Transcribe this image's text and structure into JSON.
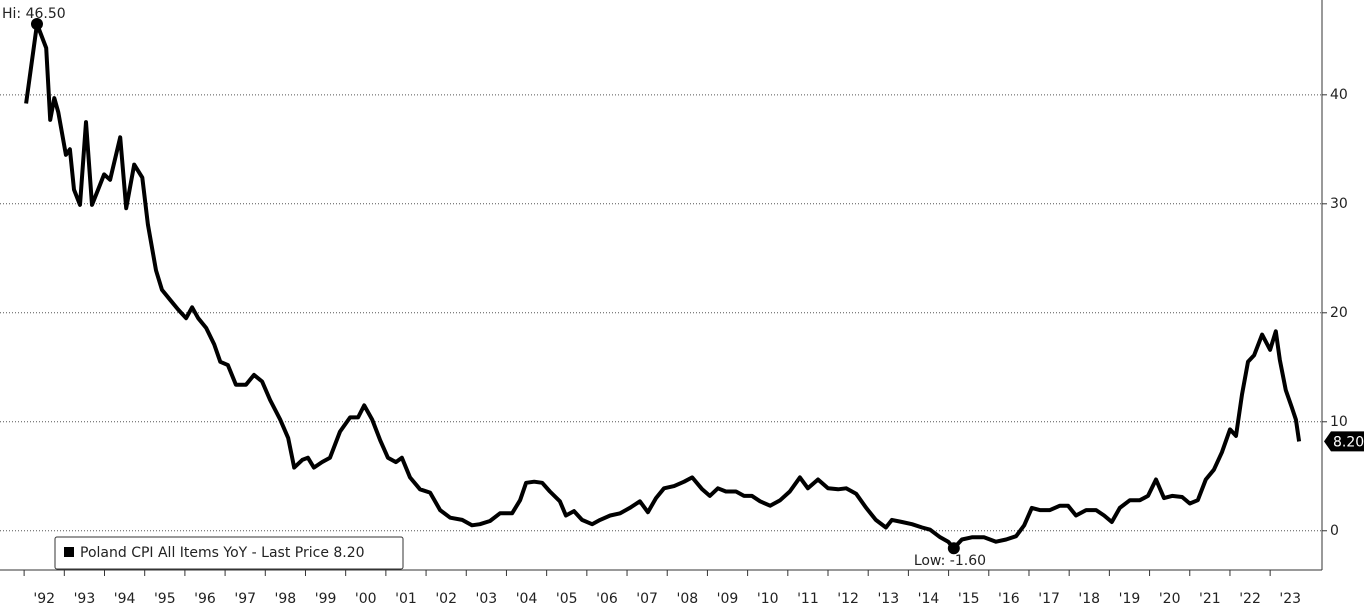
{
  "chart_data": {
    "type": "line",
    "hi_label": "Hi: 46.50",
    "low_label": "Low: -1.60",
    "last_label": "8.20",
    "x": [
      1992.05,
      1992.32,
      1992.55,
      1992.65,
      1992.75,
      1992.85,
      1993.04,
      1993.14,
      1993.24,
      1993.39,
      1993.54,
      1993.69,
      1993.84,
      1993.99,
      1994.14,
      1994.39,
      1994.54,
      1994.74,
      1994.94,
      1995.08,
      1995.28,
      1995.43,
      1995.63,
      1995.83,
      1996.03,
      1996.18,
      1996.33,
      1996.53,
      1996.73,
      1996.88,
      1997.07,
      1997.27,
      1997.52,
      1997.72,
      1997.92,
      1998.12,
      1998.37,
      1998.57,
      1998.72,
      1998.92,
      1999.06,
      1999.21,
      1999.41,
      1999.61,
      1999.86,
      2000.11,
      2000.31,
      2000.46,
      2000.66,
      2000.86,
      2001.05,
      2001.25,
      2001.4,
      2001.6,
      2001.85,
      2002.1,
      2002.35,
      2002.6,
      2002.9,
      2003.14,
      2003.34,
      2003.59,
      2003.84,
      2004.14,
      2004.34,
      2004.49,
      2004.69,
      2004.89,
      2005.08,
      2005.33,
      2005.48,
      2005.68,
      2005.88,
      2006.13,
      2006.33,
      2006.58,
      2006.83,
      2007.07,
      2007.32,
      2007.52,
      2007.72,
      2007.92,
      2008.17,
      2008.42,
      2008.62,
      2008.87,
      2009.06,
      2009.26,
      2009.46,
      2009.71,
      2009.91,
      2010.11,
      2010.31,
      2010.56,
      2010.81,
      2011.05,
      2011.3,
      2011.5,
      2011.75,
      2012.0,
      2012.25,
      2012.45,
      2012.7,
      2012.95,
      2013.19,
      2013.44,
      2013.59,
      2013.84,
      2014.09,
      2014.34,
      2014.54,
      2014.79,
      2014.99,
      2015.13,
      2015.33,
      2015.58,
      2015.88,
      2016.18,
      2016.43,
      2016.68,
      2016.88,
      2017.07,
      2017.27,
      2017.52,
      2017.77,
      2017.97,
      2018.17,
      2018.42,
      2018.67,
      2018.87,
      2019.06,
      2019.26,
      2019.51,
      2019.76,
      2019.96,
      2020.16,
      2020.36,
      2020.56,
      2020.81,
      2021.0,
      2021.2,
      2021.4,
      2021.6,
      2021.8,
      2022.0,
      2022.15,
      2022.3,
      2022.45,
      2022.6,
      2022.8,
      2023.0,
      2023.14,
      2023.24,
      2023.39,
      2023.54,
      2023.64,
      2023.72
    ],
    "series": [
      {
        "name": "Poland CPI All Items YoY - Last Price 8.20",
        "color": "#000000",
        "values": [
          39.2,
          46.5,
          44.3,
          37.7,
          39.7,
          38.4,
          34.5,
          35.0,
          31.3,
          29.9,
          37.5,
          29.9,
          31.3,
          32.7,
          32.2,
          36.1,
          29.6,
          33.6,
          32.4,
          28.1,
          23.9,
          22.1,
          21.2,
          20.3,
          19.5,
          20.5,
          19.5,
          18.6,
          17.1,
          15.5,
          15.2,
          13.4,
          13.4,
          14.3,
          13.7,
          12.0,
          10.2,
          8.5,
          5.8,
          6.5,
          6.7,
          5.8,
          6.3,
          6.7,
          9.1,
          10.4,
          10.4,
          11.5,
          10.2,
          8.3,
          6.7,
          6.3,
          6.7,
          4.9,
          3.8,
          3.5,
          1.9,
          1.2,
          1.0,
          0.5,
          0.6,
          0.9,
          1.6,
          1.6,
          2.8,
          4.4,
          4.5,
          4.4,
          3.6,
          2.7,
          1.4,
          1.8,
          1.0,
          0.6,
          1.0,
          1.4,
          1.6,
          2.1,
          2.7,
          1.7,
          3.0,
          3.9,
          4.1,
          4.5,
          4.9,
          3.8,
          3.2,
          3.9,
          3.6,
          3.6,
          3.2,
          3.2,
          2.7,
          2.3,
          2.8,
          3.6,
          4.9,
          3.9,
          4.7,
          3.9,
          3.8,
          3.9,
          3.4,
          2.1,
          1.0,
          0.3,
          1.0,
          0.8,
          0.6,
          0.3,
          0.1,
          -0.6,
          -1.0,
          -1.6,
          -0.8,
          -0.6,
          -0.6,
          -1.0,
          -0.8,
          -0.5,
          0.5,
          2.1,
          1.9,
          1.9,
          2.3,
          2.3,
          1.4,
          1.9,
          1.9,
          1.4,
          0.8,
          2.1,
          2.8,
          2.8,
          3.2,
          4.7,
          3.0,
          3.2,
          3.1,
          2.5,
          2.8,
          4.7,
          5.6,
          7.2,
          9.3,
          8.7,
          12.5,
          15.5,
          16.1,
          18.0,
          16.6,
          18.3,
          15.7,
          12.9,
          11.3,
          10.2,
          8.2
        ]
      }
    ],
    "xlim": [
      1991.4,
      2024.29
    ],
    "ylim": [
      -3.6,
      48.7
    ],
    "yticks": [
      0,
      10,
      20,
      30,
      40
    ],
    "xticks": [
      {
        "value": 1992,
        "label": "'92"
      },
      {
        "value": 1993,
        "label": "'93"
      },
      {
        "value": 1994,
        "label": "'94"
      },
      {
        "value": 1995,
        "label": "'95"
      },
      {
        "value": 1996,
        "label": "'96"
      },
      {
        "value": 1997,
        "label": "'97"
      },
      {
        "value": 1998,
        "label": "'98"
      },
      {
        "value": 1999,
        "label": "'99"
      },
      {
        "value": 2000,
        "label": "'00"
      },
      {
        "value": 2001,
        "label": "'01"
      },
      {
        "value": 2002,
        "label": "'02"
      },
      {
        "value": 2003,
        "label": "'03"
      },
      {
        "value": 2004,
        "label": "'04"
      },
      {
        "value": 2005,
        "label": "'05"
      },
      {
        "value": 2006,
        "label": "'06"
      },
      {
        "value": 2007,
        "label": "'07"
      },
      {
        "value": 2008,
        "label": "'08"
      },
      {
        "value": 2009,
        "label": "'09"
      },
      {
        "value": 2010,
        "label": "'10"
      },
      {
        "value": 2011,
        "label": "'11"
      },
      {
        "value": 2012,
        "label": "'12"
      },
      {
        "value": 2013,
        "label": "'13"
      },
      {
        "value": 2014,
        "label": "'14"
      },
      {
        "value": 2015,
        "label": "'15"
      },
      {
        "value": 2016,
        "label": "'16"
      },
      {
        "value": 2017,
        "label": "'17"
      },
      {
        "value": 2018,
        "label": "'18"
      },
      {
        "value": 2019,
        "label": "'19"
      },
      {
        "value": 2020,
        "label": "'20"
      },
      {
        "value": 2021,
        "label": "'21"
      },
      {
        "value": 2022,
        "label": "'22"
      },
      {
        "value": 2023,
        "label": "'23"
      }
    ],
    "grid": true
  }
}
